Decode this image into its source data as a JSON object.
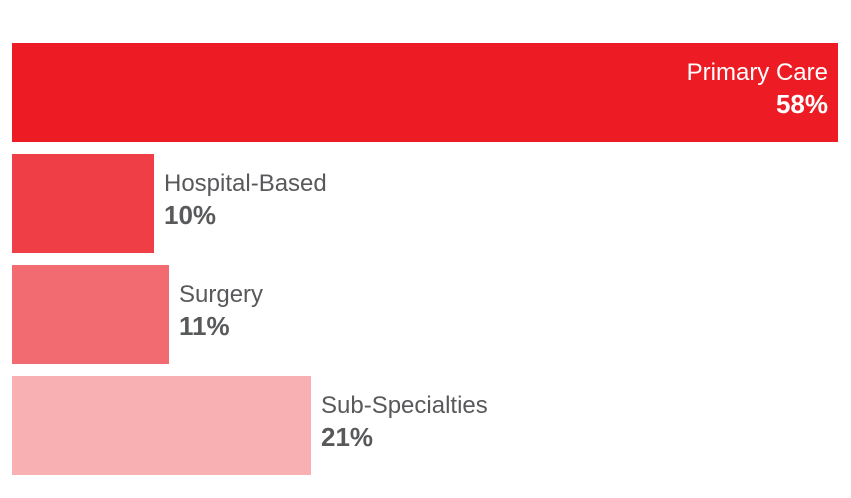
{
  "chart_data": {
    "type": "bar",
    "orientation": "horizontal",
    "title": "",
    "xlabel": "",
    "ylabel": "",
    "xlim": [
      0,
      58
    ],
    "grid": false,
    "legend": "none",
    "categories": [
      "Primary Care",
      "Hospital-Based",
      "Surgery",
      "Sub-Specialties"
    ],
    "values": [
      58,
      10,
      11,
      21
    ],
    "value_labels": [
      "58%",
      "10%",
      "11%",
      "21%"
    ],
    "colors": [
      "#ed1c24",
      "#ef3e46",
      "#f26b70",
      "#f8b0b3"
    ]
  }
}
